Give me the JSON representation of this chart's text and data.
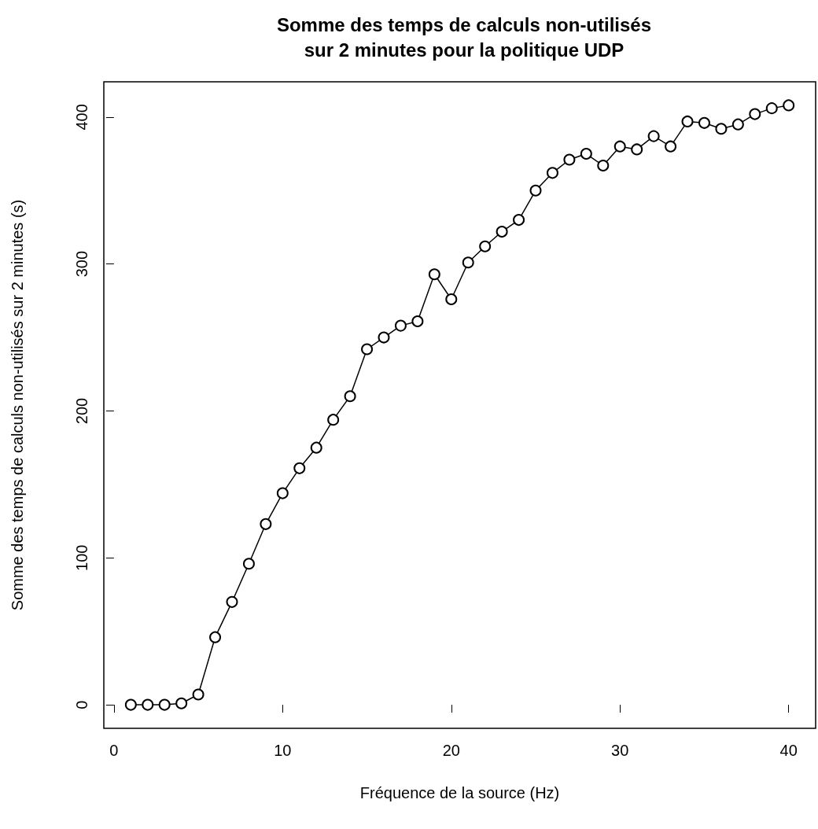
{
  "chart_data": {
    "type": "line",
    "title": "Somme des temps de calculs non-utilisés\nsur 2 minutes pour la politique UDP",
    "xlabel": "Fréquence de la source (Hz)",
    "ylabel": "Somme des temps de calculs non-utilisés sur 2 minutes (s)",
    "x": [
      1,
      2,
      3,
      4,
      5,
      6,
      7,
      8,
      9,
      10,
      11,
      12,
      13,
      14,
      15,
      16,
      17,
      18,
      19,
      20,
      21,
      22,
      23,
      24,
      25,
      26,
      27,
      28,
      29,
      30,
      31,
      32,
      33,
      34,
      35,
      36,
      37,
      38,
      39,
      40
    ],
    "series": [
      {
        "color": "#000000",
        "values": [
          0,
          0,
          0,
          1,
          7,
          46,
          70,
          96,
          123,
          144,
          161,
          175,
          194,
          210,
          242,
          250,
          258,
          261,
          293,
          276,
          301,
          312,
          322,
          330,
          350,
          362,
          371,
          375,
          367,
          380,
          378,
          387,
          380,
          397,
          396,
          392,
          395,
          402,
          406,
          408
        ]
      }
    ],
    "xlim": [
      -0.6,
      41.6
    ],
    "xticks": [
      0,
      10,
      20,
      30,
      40
    ],
    "ylim": [
      -16,
      424
    ],
    "yticks": [
      0,
      100,
      200,
      300,
      400
    ],
    "grid": false,
    "marker": "circle",
    "line_style": "solid"
  }
}
